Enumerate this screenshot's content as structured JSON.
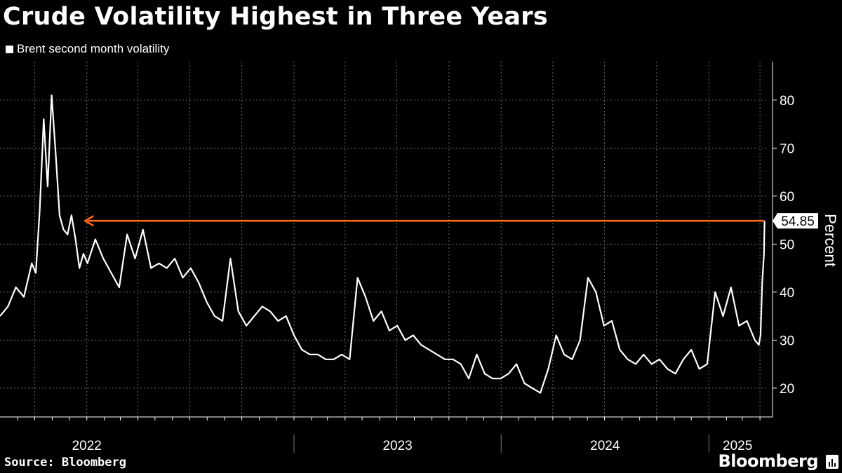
{
  "title": "Crude Volatility Highest in Three Years",
  "source": "Source: Bloomberg",
  "brand": "Bloomberg",
  "brand_icon": "bloomberg-terminal-icon",
  "colors": {
    "background": "#000000",
    "line": "#ffffff",
    "annotation": "#ff6a1a",
    "grid": "#6b6b6b"
  },
  "chart_data": {
    "type": "line",
    "title": "Crude Volatility Highest in Three Years",
    "ylabel": "Percent",
    "ylim": [
      14,
      88
    ],
    "yticks": [
      20,
      30,
      40,
      50,
      60,
      70,
      80
    ],
    "xlim": [
      "2021-08-01",
      "2025-04-12"
    ],
    "xticks": [
      "2022",
      "2023",
      "2024",
      "2025"
    ],
    "grid": true,
    "legend_position": "top-left",
    "series": [
      {
        "name": "Brent second month volatility",
        "x": [
          "2021-08-01",
          "2021-08-15",
          "2021-08-29",
          "2021-09-12",
          "2021-09-26",
          "2021-10-03",
          "2021-10-10",
          "2021-10-17",
          "2021-10-24",
          "2021-10-31",
          "2021-11-07",
          "2021-11-14",
          "2021-11-21",
          "2021-11-28",
          "2021-12-05",
          "2021-12-12",
          "2021-12-19",
          "2021-12-26",
          "2022-01-02",
          "2022-01-16",
          "2022-01-30",
          "2022-02-13",
          "2022-02-27",
          "2022-03-13",
          "2022-03-27",
          "2022-04-10",
          "2022-04-24",
          "2022-05-08",
          "2022-05-22",
          "2022-06-05",
          "2022-06-19",
          "2022-07-03",
          "2022-07-17",
          "2022-07-31",
          "2022-08-14",
          "2022-08-28",
          "2022-09-11",
          "2022-09-25",
          "2022-10-09",
          "2022-10-23",
          "2022-11-06",
          "2022-11-20",
          "2022-12-04",
          "2022-12-18",
          "2023-01-01",
          "2023-01-15",
          "2023-01-29",
          "2023-02-12",
          "2023-02-26",
          "2023-03-12",
          "2023-03-26",
          "2023-04-09",
          "2023-04-23",
          "2023-05-07",
          "2023-05-21",
          "2023-06-04",
          "2023-06-18",
          "2023-07-02",
          "2023-07-16",
          "2023-07-30",
          "2023-08-13",
          "2023-08-27",
          "2023-09-10",
          "2023-09-24",
          "2023-10-08",
          "2023-10-22",
          "2023-11-05",
          "2023-11-19",
          "2023-12-03",
          "2023-12-17",
          "2023-12-31",
          "2024-01-14",
          "2024-01-28",
          "2024-02-11",
          "2024-02-25",
          "2024-03-10",
          "2024-03-24",
          "2024-04-07",
          "2024-04-21",
          "2024-05-05",
          "2024-05-19",
          "2024-06-02",
          "2024-06-16",
          "2024-06-30",
          "2024-07-14",
          "2024-07-28",
          "2024-08-11",
          "2024-08-25",
          "2024-09-08",
          "2024-09-22",
          "2024-10-06",
          "2024-10-20",
          "2024-11-03",
          "2024-11-17",
          "2024-12-01",
          "2024-12-15",
          "2024-12-29",
          "2025-01-12",
          "2025-01-26",
          "2025-02-09",
          "2025-02-23",
          "2025-03-09",
          "2025-03-23",
          "2025-03-30",
          "2025-04-02",
          "2025-04-05",
          "2025-04-08",
          "2025-04-09"
        ],
        "values": [
          35,
          37,
          41,
          39,
          46,
          44,
          57,
          76,
          62,
          81,
          69,
          56,
          53,
          52,
          56,
          51,
          45,
          48,
          46,
          51,
          47,
          44,
          41,
          52,
          47,
          53,
          45,
          46,
          45,
          47,
          43,
          45,
          42,
          38,
          35,
          34,
          47,
          36,
          33,
          35,
          37,
          36,
          34,
          35,
          31,
          28,
          27,
          27,
          26,
          26,
          27,
          26,
          43,
          39,
          34,
          36,
          32,
          33,
          30,
          31,
          29,
          28,
          27,
          26,
          26,
          25,
          22,
          27,
          23,
          22,
          22,
          23,
          25,
          21,
          20,
          19,
          24,
          31,
          27,
          26,
          30,
          43,
          40,
          33,
          34,
          28,
          26,
          25,
          27,
          25,
          26,
          24,
          23,
          26,
          28,
          24,
          25,
          40,
          35,
          41,
          33,
          34,
          30,
          29,
          31,
          42,
          48,
          54.85
        ]
      }
    ],
    "annotations": [
      {
        "type": "arrow",
        "y": 54.85,
        "from_x": "2025-04-09",
        "to_x": "2021-12-29",
        "color": "#ff6a1a"
      },
      {
        "type": "value-label",
        "text": "54.85",
        "y": 54.85
      }
    ]
  }
}
